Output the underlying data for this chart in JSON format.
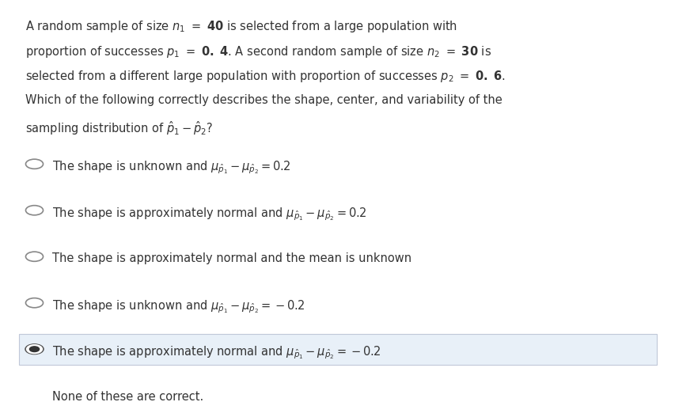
{
  "bg_color": "#ffffff",
  "highlight_color": "#e8f0f8",
  "text_color": "#333333",
  "question_lines": [
    "A random sample of size $n_1 = $ \\textbf{40} is selected from a large population with",
    "proportion of successes $p_1 = $ \\textbf{0. 4}. A second random sample of size $n_2 = $ \\textbf{30} is",
    "selected from a different large population with proportion of successes $p_2 = $ \\textbf{0. 6}.",
    "Which of the following correctly describes the shape, center, and variability of the",
    "sampling distribution of $\\hat{p}_1 - \\hat{p}_2$?"
  ],
  "options": [
    {
      "text": "The shape is unknown and $\\mu_{\\hat{p}_1} - \\mu_{\\hat{p}_2} = 0.2$",
      "selected": false,
      "highlighted": false
    },
    {
      "text": "The shape is approximately normal and $\\mu_{\\hat{p}_1} - \\mu_{\\hat{p}_2} = 0.2$",
      "selected": false,
      "highlighted": false
    },
    {
      "text": "The shape is approximately normal and the mean is unknown",
      "selected": false,
      "highlighted": false
    },
    {
      "text": "The shape is unknown and $\\mu_{\\hat{p}_1} - \\mu_{\\hat{p}_2} = -0.2$",
      "selected": false,
      "highlighted": false
    },
    {
      "text": "The shape is approximately normal and $\\mu_{\\hat{p}_1} - \\mu_{\\hat{p}_2} = -0.2$",
      "selected": true,
      "highlighted": true
    },
    {
      "text": "None of these are correct.",
      "selected": false,
      "highlighted": false
    }
  ],
  "figsize": [
    8.54,
    5.08
  ],
  "dpi": 100
}
